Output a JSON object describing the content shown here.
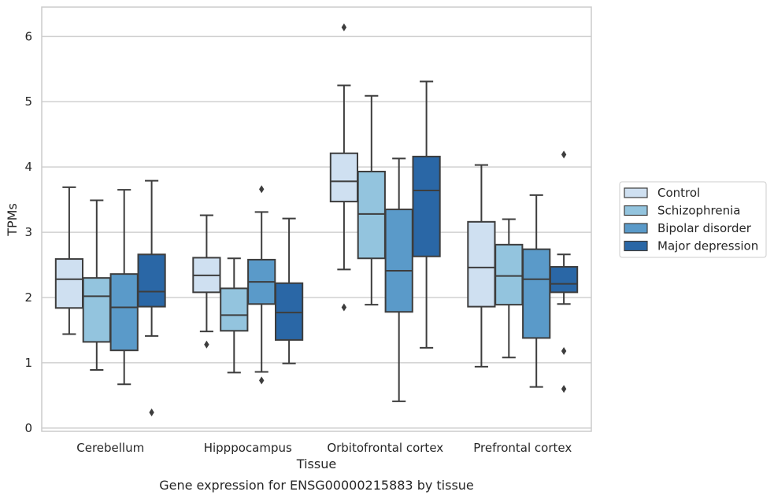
{
  "chart_data": {
    "type": "box",
    "caption": "Gene expression for ENSG00000215883 by tissue",
    "xlabel": "Tissue",
    "ylabel": "TPMs",
    "ylim": [
      -0.05,
      6.45
    ],
    "yticks": [
      0,
      1,
      2,
      3,
      4,
      5,
      6
    ],
    "grid": "horizontal",
    "legend_position": "right",
    "categories": [
      "Cerebellum",
      "Hipppocampus",
      "Orbitofrontal cortex",
      "Prefrontal cortex"
    ],
    "series": [
      {
        "name": "Control",
        "color": "#cfe0f1",
        "boxes": [
          {
            "whislo": 1.44,
            "q1": 1.84,
            "med": 2.28,
            "q3": 2.59,
            "whishi": 3.69,
            "fliers": []
          },
          {
            "whislo": 1.48,
            "q1": 2.08,
            "med": 2.34,
            "q3": 2.61,
            "whishi": 3.26,
            "fliers": [
              1.28
            ]
          },
          {
            "whislo": 2.43,
            "q1": 3.47,
            "med": 3.78,
            "q3": 4.21,
            "whishi": 5.25,
            "fliers": [
              1.85,
              6.14
            ]
          },
          {
            "whislo": 0.94,
            "q1": 1.86,
            "med": 2.46,
            "q3": 3.16,
            "whishi": 4.03,
            "fliers": []
          }
        ]
      },
      {
        "name": "Schizophrenia",
        "color": "#93c4de",
        "boxes": [
          {
            "whislo": 0.89,
            "q1": 1.32,
            "med": 2.02,
            "q3": 2.3,
            "whishi": 3.49,
            "fliers": []
          },
          {
            "whislo": 0.85,
            "q1": 1.49,
            "med": 1.73,
            "q3": 2.14,
            "whishi": 2.6,
            "fliers": []
          },
          {
            "whislo": 1.89,
            "q1": 2.6,
            "med": 3.28,
            "q3": 3.93,
            "whishi": 5.09,
            "fliers": []
          },
          {
            "whislo": 1.08,
            "q1": 1.89,
            "med": 2.33,
            "q3": 2.81,
            "whishi": 3.2,
            "fliers": []
          }
        ]
      },
      {
        "name": "Bipolar disorder",
        "color": "#5a9ac9",
        "boxes": [
          {
            "whislo": 0.67,
            "q1": 1.19,
            "med": 1.85,
            "q3": 2.36,
            "whishi": 3.65,
            "fliers": []
          },
          {
            "whislo": 0.86,
            "q1": 1.9,
            "med": 2.24,
            "q3": 2.58,
            "whishi": 3.31,
            "fliers": [
              0.73,
              3.66
            ]
          },
          {
            "whislo": 0.41,
            "q1": 1.78,
            "med": 2.41,
            "q3": 3.35,
            "whishi": 4.13,
            "fliers": []
          },
          {
            "whislo": 0.63,
            "q1": 1.38,
            "med": 2.28,
            "q3": 2.74,
            "whishi": 3.57,
            "fliers": []
          }
        ]
      },
      {
        "name": "Major depression",
        "color": "#2a67a6",
        "boxes": [
          {
            "whislo": 1.41,
            "q1": 1.86,
            "med": 2.09,
            "q3": 2.66,
            "whishi": 3.79,
            "fliers": [
              0.24
            ]
          },
          {
            "whislo": 0.99,
            "q1": 1.35,
            "med": 1.77,
            "q3": 2.22,
            "whishi": 3.21,
            "fliers": []
          },
          {
            "whislo": 1.23,
            "q1": 2.63,
            "med": 3.64,
            "q3": 4.16,
            "whishi": 5.31,
            "fliers": []
          },
          {
            "whislo": 1.9,
            "q1": 2.08,
            "med": 2.21,
            "q3": 2.47,
            "whishi": 2.66,
            "fliers": [
              0.6,
              1.18,
              4.19
            ]
          }
        ]
      }
    ]
  }
}
